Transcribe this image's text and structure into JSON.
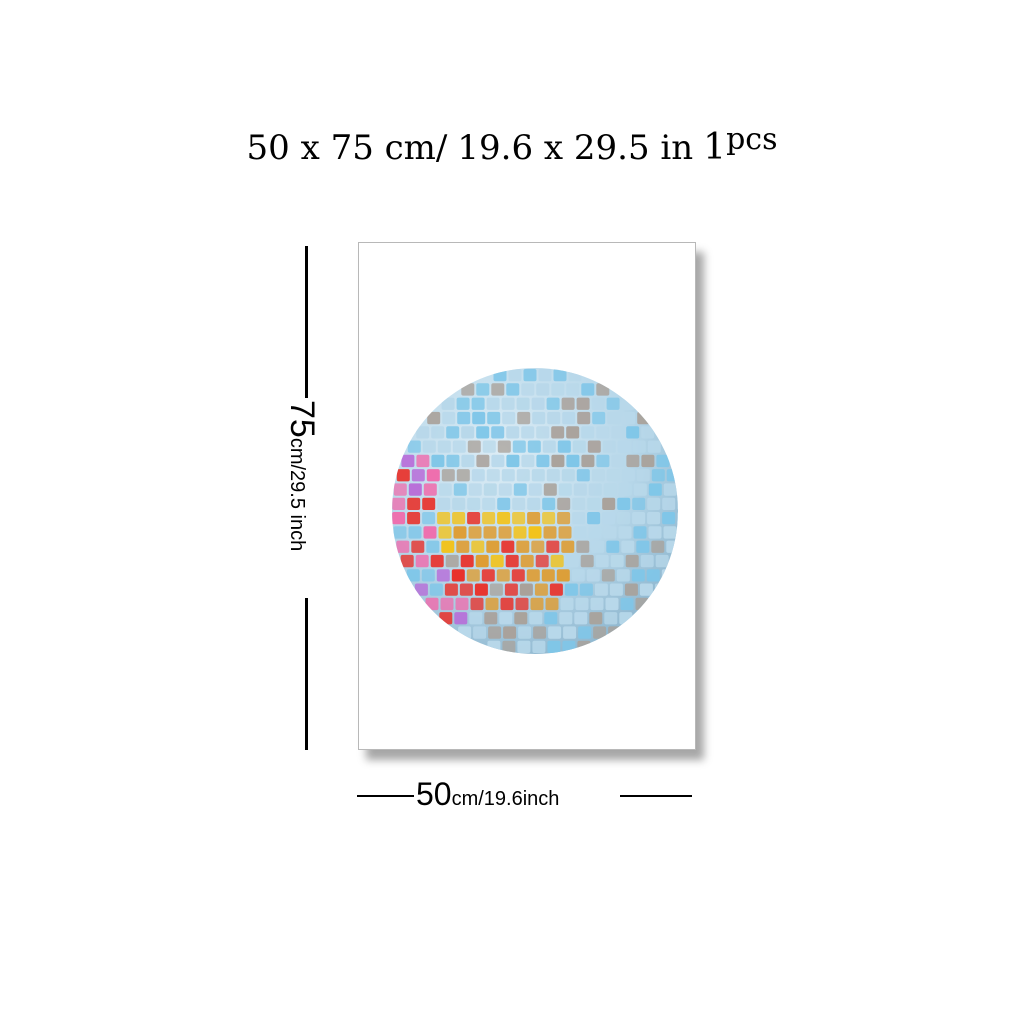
{
  "header": {
    "dims_cm": "50 x 75 cm/",
    "dims_in": "19.6  x  29.5 in",
    "qty_number": "1",
    "qty_unit": "pcs"
  },
  "height_label": {
    "value": "75",
    "unit": "cm/29.5 inch"
  },
  "width_label": {
    "value": "50",
    "unit": "cm/19.6inch"
  },
  "artwork": {
    "subject": "disco-ball",
    "colors": {
      "tile_light": "#b8d8ea",
      "tile_blue": "#7fc6e8",
      "tile_gray": "#a9a19a",
      "tile_orange": "#e09a2a",
      "tile_red": "#e8332c",
      "tile_purple": "#b86ad8",
      "tile_pink": "#ee6fae",
      "tile_yellow": "#f2c21a"
    }
  }
}
